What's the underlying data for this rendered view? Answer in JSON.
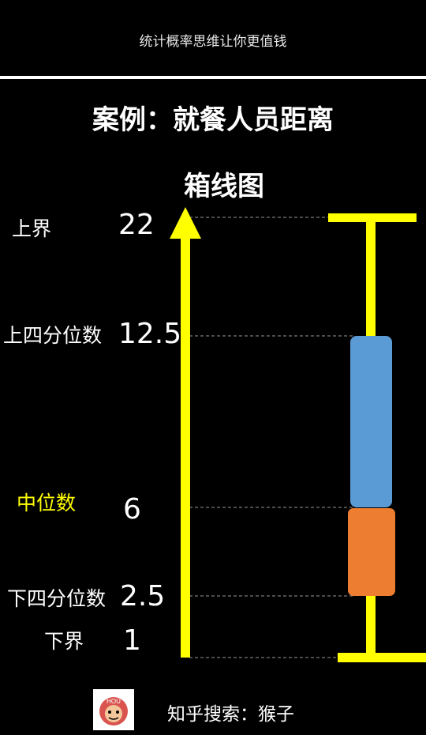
{
  "header": {
    "caption": "统计概率思维让你更值钱"
  },
  "title": "案例：就餐人员距离",
  "footer": {
    "search_text": "知乎搜索：猴子",
    "logo_text": "HOU"
  },
  "colors": {
    "axis": "#ffff00",
    "whisker": "#ffff00",
    "upper_box": "#5b9bd5",
    "lower_box": "#ed7d31",
    "median_label": "#ffff00"
  },
  "chart_data": {
    "type": "box",
    "title": "箱线图",
    "stats": [
      {
        "key": "upper_bound",
        "label": "上界",
        "value": 22,
        "display": "22"
      },
      {
        "key": "q3",
        "label": "上四分位数",
        "value": 12.5,
        "display": "12.5"
      },
      {
        "key": "median",
        "label": "中位数",
        "value": 6,
        "display": "6"
      },
      {
        "key": "q1",
        "label": "下四分位数",
        "value": 2.5,
        "display": "2.5"
      },
      {
        "key": "lower_bound",
        "label": "下界",
        "value": 1,
        "display": "1"
      }
    ]
  }
}
